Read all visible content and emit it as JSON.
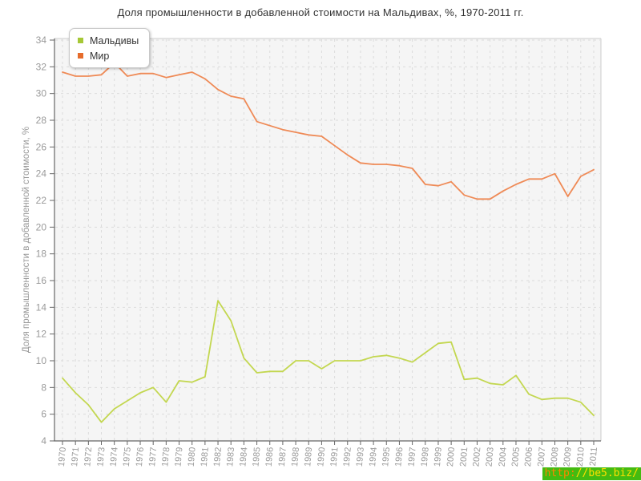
{
  "chart_data": {
    "type": "line",
    "title": "Доля промышленности в добавленной стоимости на Мальдивах, %, 1970-2011 гг.",
    "xlabel": "",
    "ylabel": "Доля промышленности в добавленной стоимости, %",
    "ylim": [
      4,
      34
    ],
    "ytick_step": 2,
    "grid": true,
    "grid_style": "dashed",
    "legend_position": "top-left",
    "x": [
      1970,
      1971,
      1972,
      1973,
      1974,
      1975,
      1976,
      1977,
      1978,
      1979,
      1980,
      1981,
      1982,
      1983,
      1984,
      1985,
      1986,
      1987,
      1988,
      1989,
      1990,
      1991,
      1992,
      1993,
      1994,
      1995,
      1996,
      1997,
      1998,
      1999,
      2000,
      2001,
      2002,
      2003,
      2004,
      2005,
      2006,
      2007,
      2008,
      2009,
      2010,
      2011
    ],
    "series": [
      {
        "name": "Мальдивы",
        "color": "#c3d750",
        "values": [
          8.7,
          7.6,
          6.7,
          5.4,
          6.4,
          7.0,
          7.6,
          8.0,
          6.9,
          8.5,
          8.4,
          8.8,
          14.5,
          13.0,
          10.2,
          9.1,
          9.2,
          9.2,
          10.0,
          10.0,
          9.4,
          10.0,
          10.0,
          10.0,
          10.3,
          10.4,
          10.2,
          9.9,
          10.6,
          11.3,
          11.4,
          8.6,
          8.7,
          8.3,
          8.2,
          8.9,
          7.5,
          7.1,
          7.2,
          7.2,
          6.9,
          5.9
        ]
      },
      {
        "name": "Мир",
        "color": "#ef8a56",
        "values": [
          31.6,
          31.3,
          31.3,
          31.4,
          32.3,
          31.3,
          31.5,
          31.5,
          31.2,
          31.4,
          31.6,
          31.1,
          30.3,
          29.8,
          29.6,
          27.9,
          27.6,
          27.3,
          27.1,
          26.9,
          26.8,
          26.1,
          25.4,
          24.8,
          24.7,
          24.7,
          24.6,
          24.4,
          23.2,
          23.1,
          23.4,
          22.4,
          22.1,
          22.1,
          22.7,
          23.2,
          23.6,
          23.6,
          24.0,
          22.3,
          23.8,
          24.3
        ]
      }
    ]
  },
  "legend": {
    "items": [
      {
        "label": "Мальдивы",
        "color": "#a6c836"
      },
      {
        "label": "Мир",
        "color": "#e66c2c"
      }
    ]
  },
  "watermark": {
    "prefix": "http:",
    "suffix": "//be5.biz/",
    "bg_color": "#44bb11",
    "prefix_color": "#ff8400",
    "suffix_color": "#ffdf00"
  },
  "colors": {
    "plot_background": "#f5f5f5",
    "grid_line": "#dcdcdc",
    "axis_line": "#666666",
    "tick_label": "#999999",
    "axis_title": "#999999",
    "chart_title": "#333333"
  }
}
